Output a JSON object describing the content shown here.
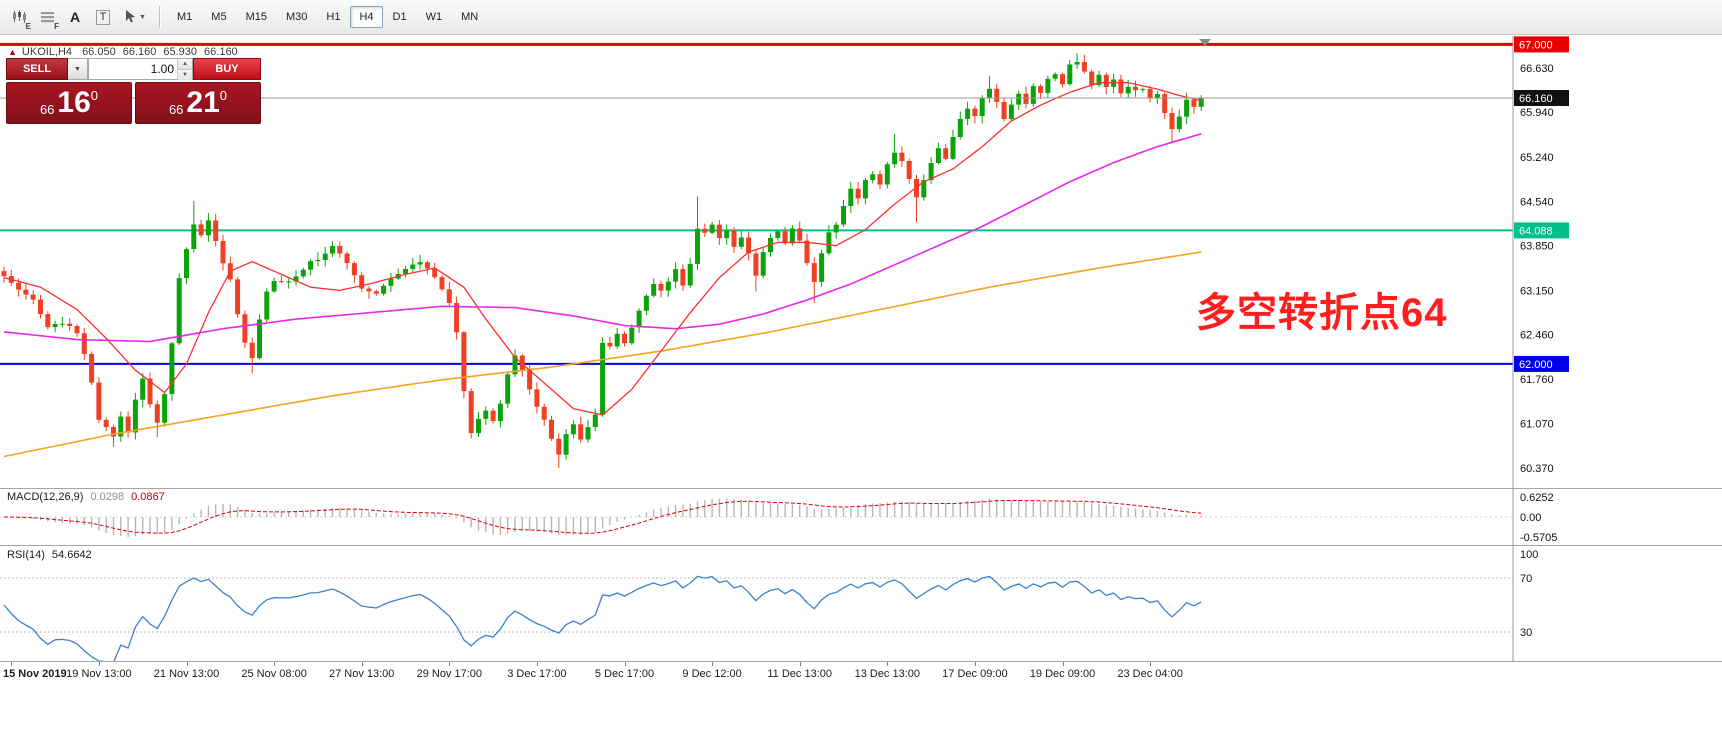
{
  "toolbar": {
    "tools": [
      {
        "id": "chart-window-tool",
        "badge": "E"
      },
      {
        "id": "data-grid-tool",
        "badge": "F"
      },
      {
        "id": "font-tool",
        "glyph": "A"
      },
      {
        "id": "text-label-tool",
        "glyph": "T"
      },
      {
        "id": "cursor-tool",
        "dropdown": "▼"
      }
    ],
    "timeframes": [
      "M1",
      "M5",
      "M15",
      "M30",
      "H1",
      "H4",
      "D1",
      "W1",
      "MN"
    ],
    "active_timeframe": "H4"
  },
  "symbol_info": {
    "symbol": "UKOIL,H4",
    "open": "66.050",
    "high": "66.160",
    "low": "65.930",
    "close": "66.160"
  },
  "trade_widget": {
    "sell_label": "SELL",
    "buy_label": "BUY",
    "volume": "1.00",
    "sell_price": {
      "big_figure": "66",
      "pips": "16",
      "pipette": "0"
    },
    "buy_price": {
      "big_figure": "66",
      "pips": "21",
      "pipette": "0"
    }
  },
  "chart_annotation": "多空转折点64",
  "macd": {
    "name": "MACD(12,26,9)",
    "value_main": "0.0298",
    "value_signal": "0.0867",
    "axis": [
      "0.6252",
      "0.00",
      "-0.5705"
    ]
  },
  "rsi": {
    "name": "RSI(14)",
    "value": "54.6642",
    "axis": [
      "100",
      "70",
      "30"
    ]
  },
  "colors": {
    "bull": "#0aa30a",
    "bear": "#ee4023",
    "ma_fast": "#ff2f2f",
    "ma_medium": "#e828e8",
    "ma_slow": "#f5a31c",
    "macd_histogram": "#b6b6b6",
    "macd_signal": "#e00000",
    "rsi_line": "#3d7fd0",
    "annotation": "#ff1e1e",
    "sell_button": "#b5121f",
    "buy_button": "#d6111c",
    "price_panel": "#9a1220",
    "level_red": "#e80000",
    "level_teal": "#00c08b",
    "level_blue": "#0000e6",
    "current_price_badge": "#111111"
  },
  "chart_data": {
    "type": "candlestick",
    "symbol": "UKOIL",
    "timeframe": "H4",
    "num_candles": 165,
    "price_range": {
      "min": 60.057,
      "max": 67.131
    },
    "y_axis_ticks": [
      "66.630",
      "65.940",
      "65.240",
      "64.540",
      "63.850",
      "63.150",
      "62.460",
      "61.760",
      "61.070",
      "60.370"
    ],
    "levels": [
      {
        "price": 67.0,
        "label": "67.000",
        "color": "#e80000",
        "width": 3
      },
      {
        "price": 64.088,
        "label": "64.088",
        "color": "#00c08b",
        "width": 2
      },
      {
        "price": 62.0,
        "label": "62.000",
        "color": "#0000e6",
        "width": 2
      },
      {
        "price": 66.16,
        "label": "66.160",
        "color": "#999999",
        "width": 1,
        "badge_color": "#111111",
        "is_bid": true
      }
    ],
    "x_labels": [
      "15 Nov 2019",
      "19 Nov 13:00",
      "21 Nov 13:00",
      "25 Nov 08:00",
      "27 Nov 13:00",
      "29 Nov 17:00",
      "3 Dec 17:00",
      "5 Dec 17:00",
      "9 Dec 12:00",
      "11 Dec 13:00",
      "13 Dec 13:00",
      "17 Dec 09:00",
      "19 Dec 09:00",
      "23 Dec 04:00"
    ],
    "x_label_indices": [
      1,
      13,
      25,
      37,
      49,
      61,
      73,
      85,
      97,
      109,
      121,
      133,
      145,
      157
    ],
    "close_waypoints": [
      [
        0,
        63.4
      ],
      [
        2,
        63.15
      ],
      [
        4,
        63.0
      ],
      [
        6,
        62.6
      ],
      [
        8,
        62.65
      ],
      [
        10,
        62.5
      ],
      [
        11,
        62.15
      ],
      [
        12,
        61.7
      ],
      [
        13,
        61.15
      ],
      [
        15,
        60.85
      ],
      [
        16,
        61.2
      ],
      [
        17,
        60.95
      ],
      [
        18,
        61.45
      ],
      [
        19,
        61.75
      ],
      [
        20,
        61.4
      ],
      [
        21,
        61.05
      ],
      [
        22,
        61.55
      ],
      [
        23,
        62.3
      ],
      [
        24,
        63.35
      ],
      [
        25,
        63.8
      ],
      [
        26,
        64.2
      ],
      [
        27,
        64.0
      ],
      [
        28,
        64.25
      ],
      [
        29,
        63.95
      ],
      [
        30,
        63.6
      ],
      [
        31,
        63.35
      ],
      [
        32,
        62.75
      ],
      [
        33,
        62.3
      ],
      [
        34,
        62.1
      ],
      [
        35,
        62.7
      ],
      [
        36,
        63.15
      ],
      [
        37,
        63.3
      ],
      [
        39,
        63.3
      ],
      [
        41,
        63.5
      ],
      [
        43,
        63.65
      ],
      [
        45,
        63.85
      ],
      [
        47,
        63.55
      ],
      [
        49,
        63.2
      ],
      [
        51,
        63.1
      ],
      [
        53,
        63.3
      ],
      [
        55,
        63.5
      ],
      [
        57,
        63.6
      ],
      [
        59,
        63.35
      ],
      [
        60,
        63.2
      ],
      [
        61,
        62.95
      ],
      [
        62,
        62.5
      ],
      [
        63,
        61.6
      ],
      [
        64,
        60.95
      ],
      [
        65,
        61.15
      ],
      [
        66,
        61.3
      ],
      [
        67,
        61.1
      ],
      [
        68,
        61.4
      ],
      [
        69,
        61.85
      ],
      [
        70,
        62.15
      ],
      [
        71,
        61.9
      ],
      [
        72,
        61.6
      ],
      [
        73,
        61.35
      ],
      [
        74,
        61.1
      ],
      [
        75,
        60.85
      ],
      [
        76,
        60.6
      ],
      [
        77,
        60.9
      ],
      [
        78,
        61.05
      ],
      [
        79,
        60.8
      ],
      [
        80,
        61.0
      ],
      [
        81,
        61.2
      ],
      [
        82,
        62.3
      ],
      [
        83,
        62.25
      ],
      [
        84,
        62.45
      ],
      [
        85,
        62.35
      ],
      [
        86,
        62.6
      ],
      [
        87,
        62.8
      ],
      [
        88,
        63.05
      ],
      [
        89,
        63.25
      ],
      [
        90,
        63.15
      ],
      [
        91,
        63.3
      ],
      [
        92,
        63.45
      ],
      [
        93,
        63.2
      ],
      [
        94,
        63.55
      ],
      [
        95,
        64.15
      ],
      [
        96,
        64.05
      ],
      [
        97,
        64.2
      ],
      [
        98,
        63.95
      ],
      [
        99,
        64.1
      ],
      [
        100,
        63.85
      ],
      [
        101,
        63.95
      ],
      [
        102,
        63.75
      ],
      [
        103,
        63.4
      ],
      [
        104,
        63.75
      ],
      [
        105,
        63.95
      ],
      [
        106,
        64.05
      ],
      [
        107,
        63.9
      ],
      [
        108,
        64.1
      ],
      [
        109,
        63.95
      ],
      [
        110,
        63.55
      ],
      [
        111,
        63.3
      ],
      [
        112,
        63.75
      ],
      [
        113,
        64.05
      ],
      [
        114,
        64.2
      ],
      [
        115,
        64.5
      ],
      [
        116,
        64.75
      ],
      [
        117,
        64.6
      ],
      [
        118,
        64.85
      ],
      [
        119,
        65.0
      ],
      [
        120,
        64.8
      ],
      [
        121,
        65.1
      ],
      [
        122,
        65.3
      ],
      [
        123,
        65.15
      ],
      [
        124,
        64.9
      ],
      [
        125,
        64.6
      ],
      [
        126,
        64.85
      ],
      [
        127,
        65.15
      ],
      [
        128,
        65.35
      ],
      [
        129,
        65.2
      ],
      [
        130,
        65.55
      ],
      [
        131,
        65.8
      ],
      [
        132,
        66.0
      ],
      [
        133,
        65.9
      ],
      [
        134,
        66.15
      ],
      [
        135,
        66.3
      ],
      [
        136,
        66.1
      ],
      [
        137,
        65.85
      ],
      [
        138,
        66.05
      ],
      [
        139,
        66.2
      ],
      [
        140,
        66.1
      ],
      [
        141,
        66.35
      ],
      [
        142,
        66.25
      ],
      [
        143,
        66.45
      ],
      [
        144,
        66.55
      ],
      [
        145,
        66.4
      ],
      [
        146,
        66.65
      ],
      [
        147,
        66.75
      ],
      [
        148,
        66.6
      ],
      [
        149,
        66.35
      ],
      [
        150,
        66.5
      ],
      [
        151,
        66.3
      ],
      [
        152,
        66.45
      ],
      [
        153,
        66.2
      ],
      [
        154,
        66.35
      ],
      [
        155,
        66.25
      ],
      [
        156,
        66.3
      ],
      [
        157,
        66.2
      ],
      [
        158,
        66.25
      ],
      [
        159,
        65.95
      ],
      [
        160,
        65.7
      ],
      [
        161,
        65.9
      ],
      [
        162,
        66.1
      ],
      [
        163,
        66.05
      ],
      [
        164,
        66.16
      ]
    ],
    "wick_lows": [
      [
        15,
        60.7
      ],
      [
        21,
        60.85
      ],
      [
        34,
        61.85
      ],
      [
        76,
        60.37
      ],
      [
        103,
        63.13
      ],
      [
        111,
        62.95
      ],
      [
        125,
        64.22
      ],
      [
        160,
        65.48
      ]
    ],
    "wick_highs": [
      [
        26,
        64.55
      ],
      [
        95,
        64.62
      ],
      [
        122,
        65.6
      ],
      [
        135,
        66.5
      ],
      [
        147,
        66.86
      ]
    ],
    "ma_fast_waypoints": [
      [
        0,
        63.35
      ],
      [
        5,
        63.2
      ],
      [
        10,
        62.85
      ],
      [
        14,
        62.4
      ],
      [
        18,
        61.9
      ],
      [
        22,
        61.55
      ],
      [
        25,
        62.0
      ],
      [
        28,
        62.8
      ],
      [
        31,
        63.45
      ],
      [
        34,
        63.6
      ],
      [
        38,
        63.4
      ],
      [
        42,
        63.2
      ],
      [
        46,
        63.15
      ],
      [
        50,
        63.25
      ],
      [
        55,
        63.4
      ],
      [
        59,
        63.5
      ],
      [
        63,
        63.2
      ],
      [
        66,
        62.7
      ],
      [
        70,
        62.1
      ],
      [
        74,
        61.7
      ],
      [
        78,
        61.3
      ],
      [
        82,
        61.2
      ],
      [
        86,
        61.6
      ],
      [
        90,
        62.2
      ],
      [
        94,
        62.8
      ],
      [
        98,
        63.35
      ],
      [
        102,
        63.75
      ],
      [
        106,
        63.9
      ],
      [
        110,
        63.9
      ],
      [
        114,
        63.85
      ],
      [
        118,
        64.1
      ],
      [
        122,
        64.5
      ],
      [
        126,
        64.85
      ],
      [
        130,
        65.05
      ],
      [
        134,
        65.4
      ],
      [
        138,
        65.8
      ],
      [
        142,
        66.05
      ],
      [
        146,
        66.25
      ],
      [
        150,
        66.4
      ],
      [
        154,
        66.4
      ],
      [
        158,
        66.3
      ],
      [
        161,
        66.2
      ],
      [
        164,
        66.12
      ]
    ],
    "ma_medium_waypoints": [
      [
        0,
        62.5
      ],
      [
        10,
        62.38
      ],
      [
        20,
        62.35
      ],
      [
        30,
        62.55
      ],
      [
        40,
        62.7
      ],
      [
        50,
        62.8
      ],
      [
        60,
        62.9
      ],
      [
        70,
        62.88
      ],
      [
        78,
        62.75
      ],
      [
        85,
        62.6
      ],
      [
        92,
        62.55
      ],
      [
        98,
        62.62
      ],
      [
        104,
        62.78
      ],
      [
        110,
        63.0
      ],
      [
        116,
        63.25
      ],
      [
        122,
        63.55
      ],
      [
        128,
        63.85
      ],
      [
        134,
        64.15
      ],
      [
        140,
        64.5
      ],
      [
        146,
        64.85
      ],
      [
        152,
        65.15
      ],
      [
        158,
        65.4
      ],
      [
        164,
        65.6
      ]
    ],
    "ma_slow_waypoints": [
      [
        0,
        60.55
      ],
      [
        15,
        60.9
      ],
      [
        30,
        61.2
      ],
      [
        45,
        61.5
      ],
      [
        60,
        61.75
      ],
      [
        75,
        61.95
      ],
      [
        90,
        62.2
      ],
      [
        105,
        62.5
      ],
      [
        120,
        62.85
      ],
      [
        135,
        63.2
      ],
      [
        150,
        63.5
      ],
      [
        164,
        63.75
      ]
    ],
    "indicators": {
      "macd": {
        "params": [
          12,
          26,
          9
        ],
        "current_main": 0.0298,
        "current_signal": 0.0867,
        "axis_max": 0.6252,
        "axis_min": -0.5705
      },
      "rsi": {
        "period": 14,
        "current": 54.6642,
        "levels": [
          70,
          30
        ]
      }
    }
  }
}
